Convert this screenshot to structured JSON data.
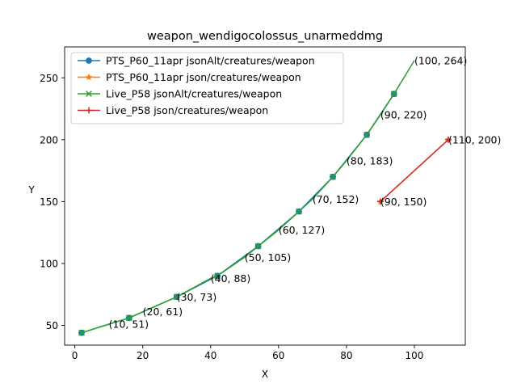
{
  "chart_data": {
    "type": "line",
    "title": "weapon_wendigocolossus_unarmeddmg",
    "xlabel": "X",
    "ylabel": "Y",
    "xlim": [
      -3,
      115
    ],
    "ylim": [
      34,
      275
    ],
    "x_ticks": [
      0,
      20,
      40,
      60,
      80,
      100
    ],
    "y_ticks": [
      50,
      100,
      150,
      200,
      250
    ],
    "x_tick_labels": [
      "0",
      "20",
      "40",
      "60",
      "80",
      "100"
    ],
    "y_tick_labels": [
      "50",
      "100",
      "150",
      "200",
      "250"
    ],
    "grid": false,
    "legend_position": "top-left",
    "series": [
      {
        "name": "PTS_P60_11apr jsonAlt/creatures/weapon",
        "color": "#1f77b4",
        "marker": "circle",
        "points": [
          [
            2,
            44
          ],
          [
            16,
            56
          ],
          [
            30,
            73
          ],
          [
            42,
            90
          ],
          [
            54,
            114
          ],
          [
            66,
            142
          ],
          [
            76,
            170
          ],
          [
            86,
            204
          ],
          [
            94,
            237
          ]
        ]
      },
      {
        "name": "PTS_P60_11apr json/creatures/weapon",
        "color": "#ff7f0e",
        "marker": "star",
        "points": [
          [
            90,
            150
          ],
          [
            110,
            200
          ]
        ]
      },
      {
        "name": "Live_P58 jsonAlt/creatures/weapon",
        "color": "#2ca02c",
        "marker": "x",
        "points": [
          [
            2,
            44
          ],
          [
            10,
            51
          ],
          [
            16,
            56
          ],
          [
            20,
            61
          ],
          [
            30,
            73
          ],
          [
            40,
            88
          ],
          [
            42,
            90
          ],
          [
            50,
            105
          ],
          [
            54,
            114
          ],
          [
            60,
            127
          ],
          [
            66,
            142
          ],
          [
            70,
            152
          ],
          [
            76,
            170
          ],
          [
            80,
            183
          ],
          [
            86,
            204
          ],
          [
            90,
            220
          ],
          [
            94,
            237
          ],
          [
            100,
            264
          ]
        ]
      },
      {
        "name": "Live_P58 json/creatures/weapon",
        "color": "#d62728",
        "marker": "plus",
        "points": [
          [
            90,
            150
          ],
          [
            110,
            200
          ]
        ]
      }
    ],
    "annotations": [
      {
        "x": 10,
        "y": 51,
        "text": "(10, 51)"
      },
      {
        "x": 20,
        "y": 61,
        "text": "(20, 61)"
      },
      {
        "x": 30,
        "y": 73,
        "text": "(30, 73)"
      },
      {
        "x": 40,
        "y": 88,
        "text": "(40, 88)"
      },
      {
        "x": 50,
        "y": 105,
        "text": "(50, 105)"
      },
      {
        "x": 60,
        "y": 127,
        "text": "(60, 127)"
      },
      {
        "x": 70,
        "y": 152,
        "text": "(70, 152)"
      },
      {
        "x": 80,
        "y": 183,
        "text": "(80, 183)"
      },
      {
        "x": 90,
        "y": 220,
        "text": "(90, 220)"
      },
      {
        "x": 100,
        "y": 264,
        "text": "(100, 264)"
      },
      {
        "x": 90,
        "y": 150,
        "text": "(90, 150)"
      },
      {
        "x": 110,
        "y": 200,
        "text": "(110, 200)"
      }
    ]
  }
}
